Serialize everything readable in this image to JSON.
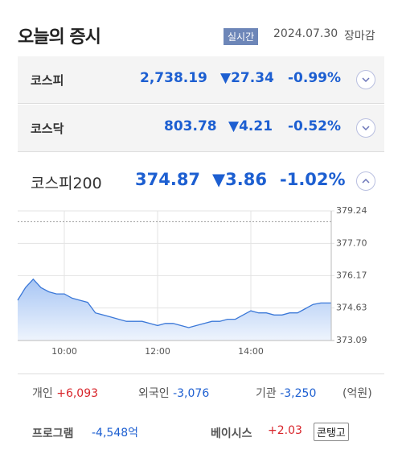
{
  "header": {
    "title": "오늘의 증시",
    "badge": "실시간",
    "date": "2024.07.30",
    "status": "장마감"
  },
  "indices": [
    {
      "name": "코스피",
      "value": "2,738.19",
      "change": "▼27.34",
      "rate": "-0.99%"
    },
    {
      "name": "코스닥",
      "value": "803.78",
      "change": "▼4.21",
      "rate": "-0.52%"
    },
    {
      "name": "코스피200",
      "value": "374.87",
      "change": "▼3.86",
      "rate": "-1.02%"
    }
  ],
  "chart_data": {
    "type": "line",
    "color": "#3b78d8",
    "x": [
      "09:00",
      "09:10",
      "09:20",
      "09:30",
      "09:40",
      "09:50",
      "10:00",
      "10:10",
      "10:20",
      "10:30",
      "10:40",
      "10:50",
      "11:00",
      "11:10",
      "11:20",
      "11:30",
      "11:40",
      "11:50",
      "12:00",
      "12:10",
      "12:20",
      "12:30",
      "12:40",
      "12:50",
      "13:00",
      "13:10",
      "13:20",
      "13:30",
      "13:40",
      "13:50",
      "14:00",
      "14:10",
      "14:20",
      "14:30",
      "14:40",
      "14:50",
      "15:00",
      "15:10",
      "15:20",
      "15:30"
    ],
    "values": [
      375.0,
      375.6,
      376.0,
      375.6,
      375.4,
      375.3,
      375.3,
      375.1,
      375.0,
      374.9,
      374.4,
      374.3,
      374.2,
      374.1,
      374.0,
      374.0,
      374.0,
      373.9,
      373.8,
      373.9,
      373.9,
      373.8,
      373.7,
      373.8,
      373.9,
      374.0,
      374.0,
      374.1,
      374.1,
      374.3,
      374.5,
      374.4,
      374.4,
      374.3,
      374.3,
      374.4,
      374.4,
      374.6,
      374.8,
      374.87
    ],
    "ylim": [
      373.09,
      379.24
    ],
    "yticks": [
      373.09,
      374.63,
      376.17,
      {
        "value": 377.7,
        "label": "377.70"
      },
      379.24
    ],
    "xticks": [
      "10:00",
      "12:00",
      "14:00"
    ],
    "reference_line": 378.73,
    "grid": true
  },
  "investors": [
    {
      "name": "개인",
      "value": "+6,093"
    },
    {
      "name": "외국인",
      "value": "-3,076"
    },
    {
      "name": "기관",
      "value": "-3,250"
    }
  ],
  "unit": "(억원)",
  "program": {
    "label": "프로그램",
    "value": "-4,548억"
  },
  "basis": {
    "label": "베이시스",
    "value": "+2.03",
    "state": "콘탱고"
  }
}
